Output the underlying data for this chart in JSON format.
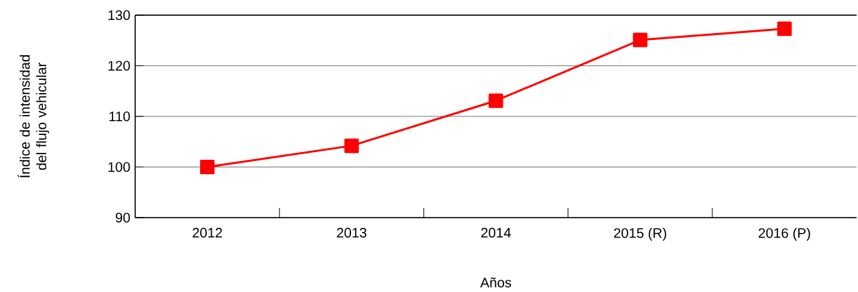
{
  "chart_data": {
    "type": "line",
    "xlabel": "Años",
    "ylabel": "Índice de intensidad del flujo vehicular",
    "categories": [
      "2012",
      "2013",
      "2014",
      "2015 (R)",
      "2016 (P)"
    ],
    "series": [
      {
        "color": "#ff0000",
        "values": [
          100,
          104.2,
          113.1,
          125.1,
          127.3
        ]
      }
    ],
    "ylim": [
      90,
      130
    ],
    "yticks": [
      90,
      100,
      110,
      120,
      130
    ],
    "grid": "y",
    "marker": "square",
    "line_style": "solid"
  }
}
